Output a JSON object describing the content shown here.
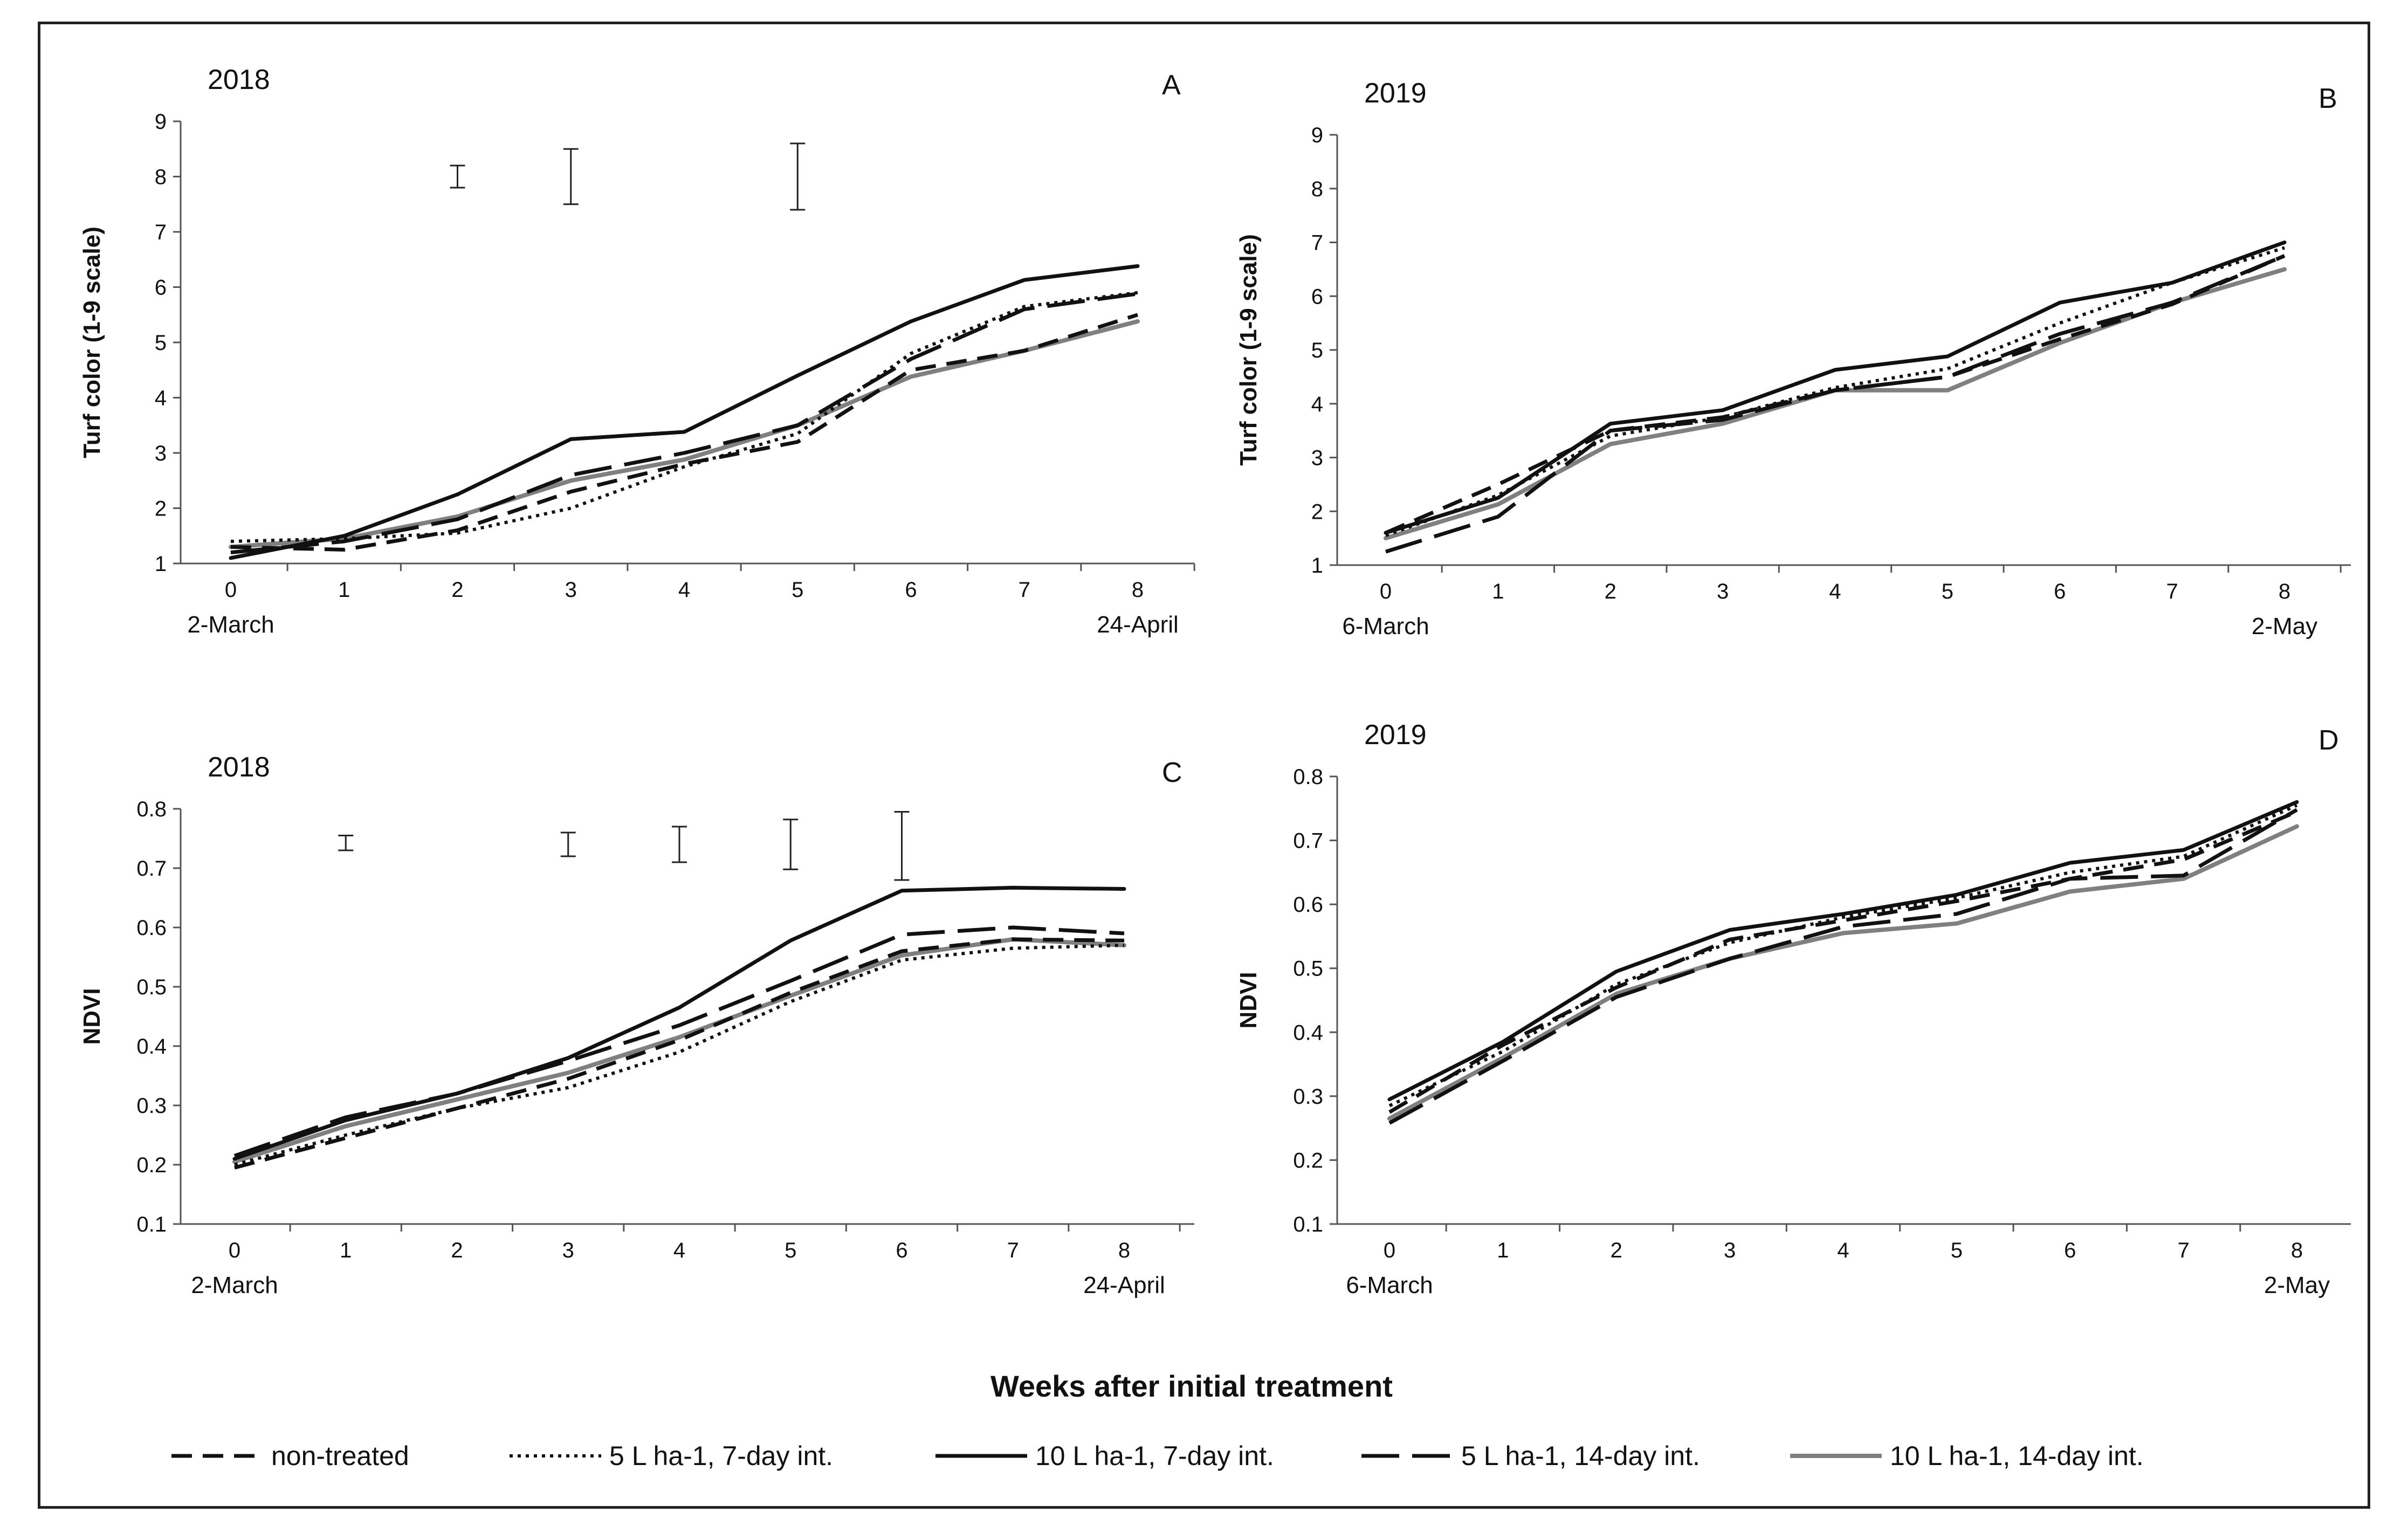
{
  "figure": {
    "common_xlabel": "Weeks after initial treatment",
    "legend": [
      {
        "name": "non-treated",
        "color": "#111111",
        "dash": "38,20",
        "width": 7
      },
      {
        "name": "5 L ha-1, 7-day int.",
        "color": "#111111",
        "dash": "6,9",
        "width": 6
      },
      {
        "name": "10 L ha-1, 7-day int.",
        "color": "#111111",
        "dash": "",
        "width": 7
      },
      {
        "name": "5 L ha-1, 14-day int.",
        "color": "#111111",
        "dash": "70,24",
        "width": 7
      },
      {
        "name": "10 L ha-1, 14-day int.",
        "color": "#808080",
        "dash": "",
        "width": 8
      }
    ]
  },
  "chart_data": [
    {
      "type": "line",
      "panel": "A",
      "year": "2018",
      "ylabel": "Turf color (1-9 scale)",
      "xlabel": "",
      "x": [
        0,
        1,
        2,
        3,
        4,
        5,
        6,
        7,
        8
      ],
      "x_start_label": "2-March",
      "x_end_label": "24-April",
      "ylim": [
        1,
        9
      ],
      "yticks": [
        1,
        2,
        3,
        4,
        5,
        6,
        7,
        8,
        9
      ],
      "grid": false,
      "series": [
        {
          "name": "non-treated",
          "values": [
            1.3,
            1.25,
            1.6,
            2.3,
            2.8,
            3.2,
            4.5,
            4.85,
            5.5
          ]
        },
        {
          "name": "5 L ha-1, 7-day int.",
          "values": [
            1.4,
            1.45,
            1.55,
            2.0,
            2.75,
            3.35,
            4.8,
            5.65,
            5.9
          ]
        },
        {
          "name": "10 L ha-1, 7-day int.",
          "values": [
            1.1,
            1.5,
            2.25,
            3.25,
            3.38,
            4.4,
            5.38,
            6.13,
            6.38
          ]
        },
        {
          "name": "5 L ha-1, 14-day int.",
          "values": [
            1.2,
            1.4,
            1.8,
            2.6,
            3.0,
            3.5,
            4.7,
            5.6,
            5.88
          ]
        },
        {
          "name": "10 L ha-1, 14-day int.",
          "values": [
            1.3,
            1.45,
            1.85,
            2.5,
            2.88,
            3.5,
            4.38,
            4.85,
            5.38
          ]
        }
      ],
      "error_bars": [
        {
          "x": 2,
          "low": 7.8,
          "high": 8.2
        },
        {
          "x": 3,
          "low": 7.5,
          "high": 8.5
        },
        {
          "x": 5,
          "low": 7.4,
          "high": 8.6
        }
      ]
    },
    {
      "type": "line",
      "panel": "B",
      "year": "2019",
      "ylabel": "Turf color (1-9 scale)",
      "xlabel": "",
      "x": [
        0,
        1,
        2,
        3,
        4,
        5,
        6,
        7,
        8
      ],
      "x_start_label": "6-March",
      "x_end_label": "2-May",
      "ylim": [
        1,
        9
      ],
      "yticks": [
        1,
        2,
        3,
        4,
        5,
        6,
        7,
        8,
        9
      ],
      "grid": false,
      "series": [
        {
          "name": "non-treated",
          "values": [
            1.6,
            2.5,
            3.5,
            3.75,
            4.25,
            4.5,
            5.2,
            5.85,
            6.75
          ]
        },
        {
          "name": "5 L ha-1, 7-day int.",
          "values": [
            1.55,
            2.3,
            3.4,
            3.75,
            4.3,
            4.65,
            5.5,
            6.25,
            6.9
          ]
        },
        {
          "name": "10 L ha-1, 7-day int.",
          "values": [
            1.6,
            2.25,
            3.63,
            3.88,
            4.63,
            4.88,
            5.88,
            6.25,
            7.0
          ]
        },
        {
          "name": "5 L ha-1, 14-day int.",
          "values": [
            1.25,
            1.9,
            3.5,
            3.7,
            4.25,
            4.5,
            5.3,
            5.88,
            6.75
          ]
        },
        {
          "name": "10 L ha-1, 14-day int.",
          "values": [
            1.5,
            2.13,
            3.25,
            3.63,
            4.25,
            4.25,
            5.13,
            5.88,
            6.5
          ]
        }
      ],
      "error_bars": []
    },
    {
      "type": "line",
      "panel": "C",
      "year": "2018",
      "ylabel": "NDVI",
      "xlabel": "",
      "x": [
        0,
        1,
        2,
        3,
        4,
        5,
        6,
        7,
        8
      ],
      "x_start_label": "2-March",
      "x_end_label": "24-April",
      "ylim": [
        0.1,
        0.8
      ],
      "yticks": [
        0.1,
        0.2,
        0.3,
        0.4,
        0.5,
        0.6,
        0.7,
        0.8
      ],
      "grid": false,
      "series": [
        {
          "name": "non-treated",
          "values": [
            0.195,
            0.245,
            0.295,
            0.345,
            0.41,
            0.49,
            0.56,
            0.58,
            0.578
          ]
        },
        {
          "name": "5 L ha-1, 7-day int.",
          "values": [
            0.2,
            0.25,
            0.295,
            0.33,
            0.39,
            0.475,
            0.545,
            0.565,
            0.57
          ]
        },
        {
          "name": "10 L ha-1, 7-day int.",
          "values": [
            0.21,
            0.275,
            0.32,
            0.38,
            0.465,
            0.578,
            0.662,
            0.667,
            0.665
          ]
        },
        {
          "name": "5 L ha-1, 14-day int.",
          "values": [
            0.215,
            0.28,
            0.32,
            0.375,
            0.435,
            0.51,
            0.588,
            0.6,
            0.59
          ]
        },
        {
          "name": "10 L ha-1, 14-day int.",
          "values": [
            0.205,
            0.265,
            0.31,
            0.355,
            0.415,
            0.485,
            0.553,
            0.58,
            0.57
          ]
        }
      ],
      "error_bars": [
        {
          "x": 1,
          "low": 0.73,
          "high": 0.755
        },
        {
          "x": 3,
          "low": 0.72,
          "high": 0.76
        },
        {
          "x": 4,
          "low": 0.71,
          "high": 0.77
        },
        {
          "x": 5,
          "low": 0.698,
          "high": 0.782
        },
        {
          "x": 6,
          "low": 0.68,
          "high": 0.795
        }
      ]
    },
    {
      "type": "line",
      "panel": "D",
      "year": "2019",
      "ylabel": "NDVI",
      "xlabel": "",
      "x": [
        0,
        1,
        2,
        3,
        4,
        5,
        6,
        7,
        8
      ],
      "x_start_label": "6-March",
      "x_end_label": "2-May",
      "ylim": [
        0.1,
        0.8
      ],
      "yticks": [
        0.1,
        0.2,
        0.3,
        0.4,
        0.5,
        0.6,
        0.7,
        0.8
      ],
      "grid": false,
      "series": [
        {
          "name": "non-treated",
          "values": [
            0.275,
            0.38,
            0.47,
            0.545,
            0.575,
            0.605,
            0.64,
            0.67,
            0.745
          ]
        },
        {
          "name": "5 L ha-1, 7-day int.",
          "values": [
            0.285,
            0.37,
            0.475,
            0.54,
            0.58,
            0.61,
            0.65,
            0.675,
            0.755
          ]
        },
        {
          "name": "10 L ha-1, 7-day int.",
          "values": [
            0.295,
            0.385,
            0.495,
            0.56,
            0.585,
            0.615,
            0.665,
            0.685,
            0.76
          ]
        },
        {
          "name": "5 L ha-1, 14-day int.",
          "values": [
            0.258,
            0.355,
            0.455,
            0.515,
            0.565,
            0.585,
            0.64,
            0.645,
            0.748
          ]
        },
        {
          "name": "10 L ha-1, 14-day int.",
          "values": [
            0.265,
            0.36,
            0.46,
            0.515,
            0.555,
            0.57,
            0.62,
            0.64,
            0.722
          ]
        }
      ],
      "error_bars": []
    }
  ]
}
